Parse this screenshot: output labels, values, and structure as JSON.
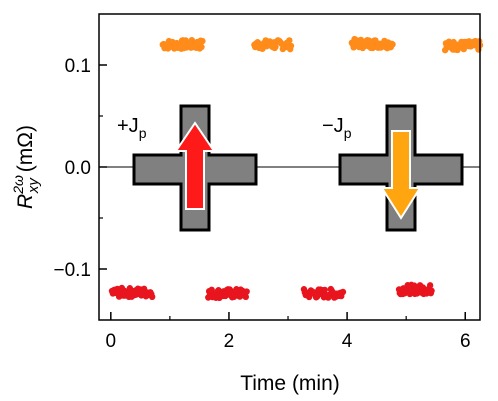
{
  "chart_data": {
    "type": "scatter",
    "title": "",
    "xlabel": "Time (min)",
    "ylabel_parts": {
      "main": "R",
      "sup": "2ω",
      "sub": "xy",
      "unit": " (mΩ)"
    },
    "xlim": [
      -0.2,
      6.25
    ],
    "ylim": [
      -0.15,
      0.15
    ],
    "xticks": [
      0,
      2,
      4,
      6
    ],
    "yticks": [
      -0.1,
      0.0,
      0.1
    ],
    "ytick_labels": [
      "−0.1",
      "0.0",
      "0.1"
    ],
    "zero_line": true,
    "grid": false,
    "series": [
      {
        "color": "#ff8c1a",
        "segments": [
          {
            "x0": 0.88,
            "x1": 1.55,
            "y": 0.12
          },
          {
            "x0": 2.43,
            "x1": 3.05,
            "y": 0.12
          },
          {
            "x0": 4.08,
            "x1": 4.77,
            "y": 0.121
          },
          {
            "x0": 5.66,
            "x1": 6.25,
            "y": 0.119
          }
        ]
      },
      {
        "color": "#e8141e",
        "segments": [
          {
            "x0": 0.02,
            "x1": 0.7,
            "y": -0.123
          },
          {
            "x0": 1.65,
            "x1": 2.3,
            "y": -0.124
          },
          {
            "x0": 3.27,
            "x1": 3.93,
            "y": -0.124
          },
          {
            "x0": 4.88,
            "x1": 5.43,
            "y": -0.12
          }
        ]
      }
    ],
    "annotations": [
      {
        "text": "+J",
        "sub": "p"
      },
      {
        "text": "−J",
        "sub": "p"
      }
    ]
  },
  "colors": {
    "cross_fill": "#808080",
    "arrow_up": "#ff1a1a",
    "arrow_down": "#ffa510"
  }
}
